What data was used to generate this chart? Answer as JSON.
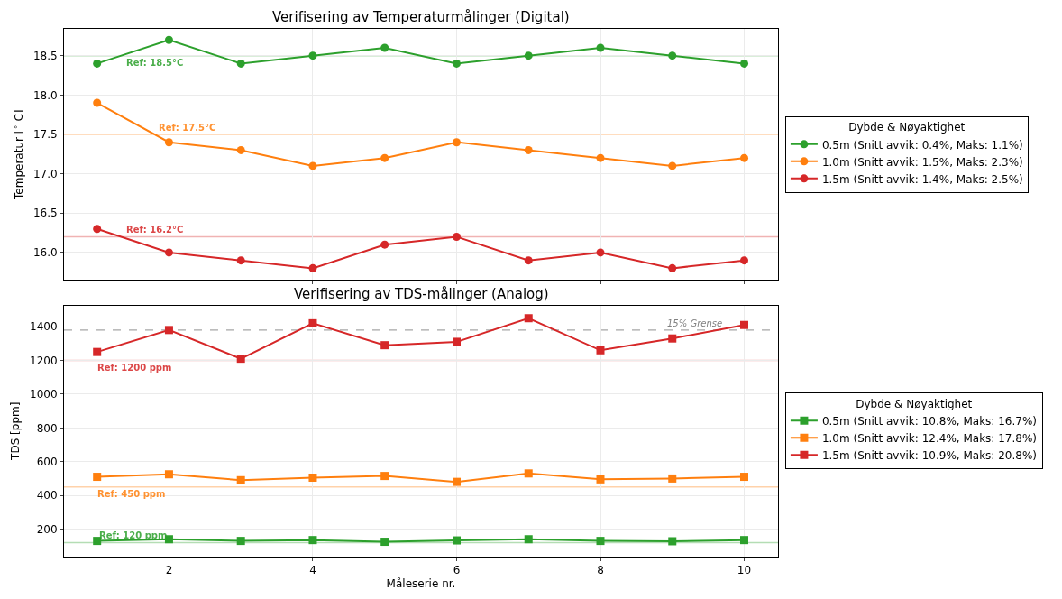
{
  "chart_data": [
    {
      "type": "line",
      "title": "Verifisering av Temperaturmålinger (Digital)",
      "ylabel": "Temperatur [$^{∘}$ C]",
      "legend_title": "Dybde & Nøyaktighet",
      "legend": "right",
      "marker": "circle",
      "line_style": "solid",
      "grid": true,
      "tick_labels": "y",
      "x": [
        1,
        2,
        3,
        4,
        5,
        6,
        7,
        8,
        9,
        10
      ],
      "xlim": [
        0.54,
        10.47
      ],
      "xticks": [
        2,
        4,
        6,
        8,
        10
      ],
      "ylim": [
        15.65,
        18.84
      ],
      "yticks": [
        {
          "value": 16,
          "label": "16.0"
        },
        16.5,
        {
          "value": 17,
          "label": "17.0"
        },
        17.5,
        {
          "value": 18,
          "label": "18.0"
        },
        18.5
      ],
      "series": [
        {
          "name": "0.5m (Snitt avvik: 0.4%, Maks: 1.1%)",
          "color": "#2ca02c",
          "values": [
            18.4,
            18.7,
            18.4,
            18.5,
            18.6,
            18.4,
            18.5,
            18.6,
            18.5,
            18.4
          ]
        },
        {
          "name": "1.0m (Snitt avvik: 1.5%, Maks: 2.3%)",
          "color": "#ff7f0e",
          "values": [
            17.9,
            17.4,
            17.3,
            17.1,
            17.2,
            17.4,
            17.3,
            17.2,
            17.1,
            17.2
          ]
        },
        {
          "name": "1.5m (Snitt avvik: 1.4%, Maks: 2.5%)",
          "color": "#d62728",
          "values": [
            16.3,
            16.0,
            15.9,
            15.8,
            16.1,
            16.2,
            15.9,
            16.0,
            15.8,
            15.9
          ]
        }
      ],
      "ref_lines": [
        {
          "axis": "y",
          "value": 18.5,
          "label": "Ref: 18.5°C",
          "color": "#2ca02c"
        },
        {
          "axis": "y",
          "value": 17.5,
          "label": "Ref: 17.5°C",
          "color": "#ff7f0e"
        },
        {
          "axis": "y",
          "value": 16.2,
          "label": "Ref: 16.2°C",
          "color": "#d62728"
        }
      ]
    },
    {
      "type": "line",
      "title": "Verifisering av TDS-målinger (Analog)",
      "xlabel": "Måleserie nr.",
      "ylabel": "TDS [ppm]",
      "legend_title": "Dybde & Nøyaktighet",
      "legend": "right",
      "marker": "square",
      "line_style": "solid",
      "grid": true,
      "x": [
        1,
        2,
        3,
        4,
        5,
        6,
        7,
        8,
        9,
        10
      ],
      "xlim": [
        0.54,
        10.47
      ],
      "xticks": [
        2,
        4,
        6,
        8,
        10
      ],
      "ylim": [
        37,
        1526
      ],
      "yticks": [
        200,
        400,
        600,
        800,
        1000,
        1200,
        1400
      ],
      "series": [
        {
          "name": "0.5m (Snitt avvik: 10.8%, Maks: 16.7%)",
          "color": "#2ca02c",
          "values": [
            130,
            140,
            130,
            135,
            125,
            133,
            140,
            130,
            128,
            135
          ]
        },
        {
          "name": "1.0m (Snitt avvik: 12.4%, Maks: 17.8%)",
          "color": "#ff7f0e",
          "values": [
            510,
            525,
            490,
            505,
            515,
            480,
            530,
            495,
            500,
            510
          ]
        },
        {
          "name": "1.5m (Snitt avvik: 10.9%, Maks: 20.8%)",
          "color": "#d62728",
          "values": [
            1250,
            1380,
            1210,
            1420,
            1290,
            1310,
            1450,
            1260,
            1330,
            1410
          ]
        }
      ],
      "ref_lines": [
        {
          "axis": "y",
          "value": 1200,
          "label": "Ref: 1200 ppm",
          "color": "#d62728"
        },
        {
          "axis": "y",
          "value": 450,
          "label": "Ref: 450 ppm",
          "color": "#ff7f0e"
        },
        {
          "axis": "y",
          "value": 120,
          "label": "Ref: 120 ppm",
          "color": "#2ca02c"
        },
        {
          "axis": "y",
          "value": 1380,
          "label": "15% Grense",
          "color": "#808080",
          "line_style": "dashed"
        }
      ]
    }
  ]
}
